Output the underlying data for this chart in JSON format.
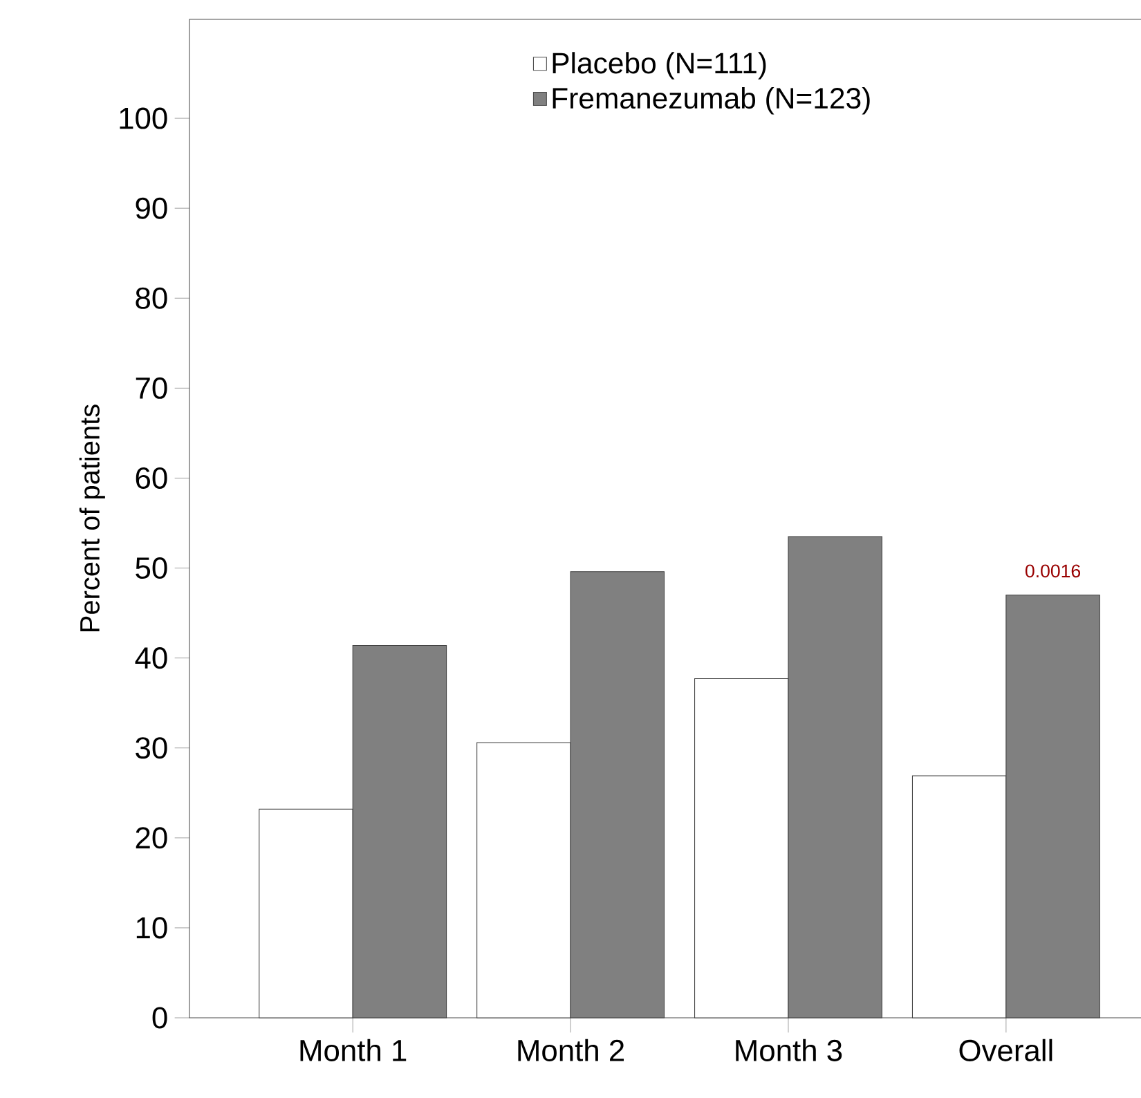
{
  "chart_data": {
    "type": "bar",
    "ylabel": "Percent of patients",
    "categories": [
      "Month 1",
      "Month 2",
      "Month 3",
      "Overall"
    ],
    "series": [
      {
        "name": "Placebo (N=111)",
        "color": "#ffffff",
        "values": [
          23.2,
          30.6,
          37.7,
          26.9
        ]
      },
      {
        "name": "Fremanezumab (N=123)",
        "color": "#808080",
        "values": [
          41.4,
          49.6,
          53.5,
          47.0
        ]
      }
    ],
    "ylim": [
      0,
      111
    ],
    "yticks": [
      0,
      10,
      20,
      30,
      40,
      50,
      60,
      70,
      80,
      90,
      100
    ],
    "grid": false,
    "legend": "top right",
    "annotations": [
      {
        "text": "0.0016",
        "x": "Overall",
        "y": 47.0
      }
    ]
  }
}
